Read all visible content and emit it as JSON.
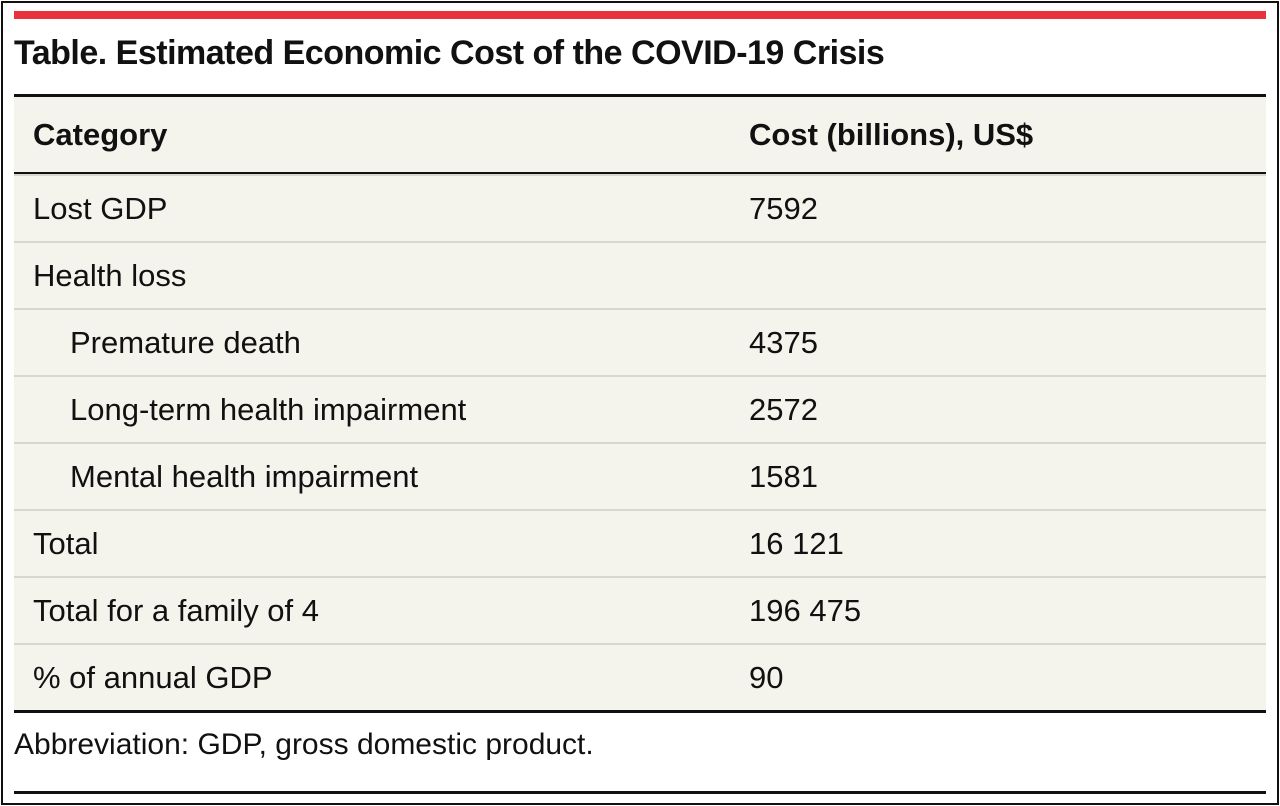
{
  "title": "Table. Estimated Economic Cost of the COVID-19 Crisis",
  "headers": [
    "Category",
    "Cost (billions), US$"
  ],
  "rows": [
    {
      "category": "Lost GDP",
      "cost": "7592",
      "indent": false
    },
    {
      "category": "Health loss",
      "cost": "",
      "indent": false
    },
    {
      "category": "Premature death",
      "cost": "4375",
      "indent": true
    },
    {
      "category": "Long-term health impairment",
      "cost": "2572",
      "indent": true
    },
    {
      "category": "Mental health impairment",
      "cost": "1581",
      "indent": true
    },
    {
      "category": "Total",
      "cost": "16 121",
      "indent": false
    },
    {
      "category": "Total for a family of 4",
      "cost": "196 475",
      "indent": false
    },
    {
      "category": "% of annual GDP",
      "cost": "90",
      "indent": false
    }
  ],
  "footnote": "Abbreviation: GDP, gross domestic product.",
  "colors": {
    "accent": "#e8313a",
    "table_bg": "#f4f3ec"
  }
}
